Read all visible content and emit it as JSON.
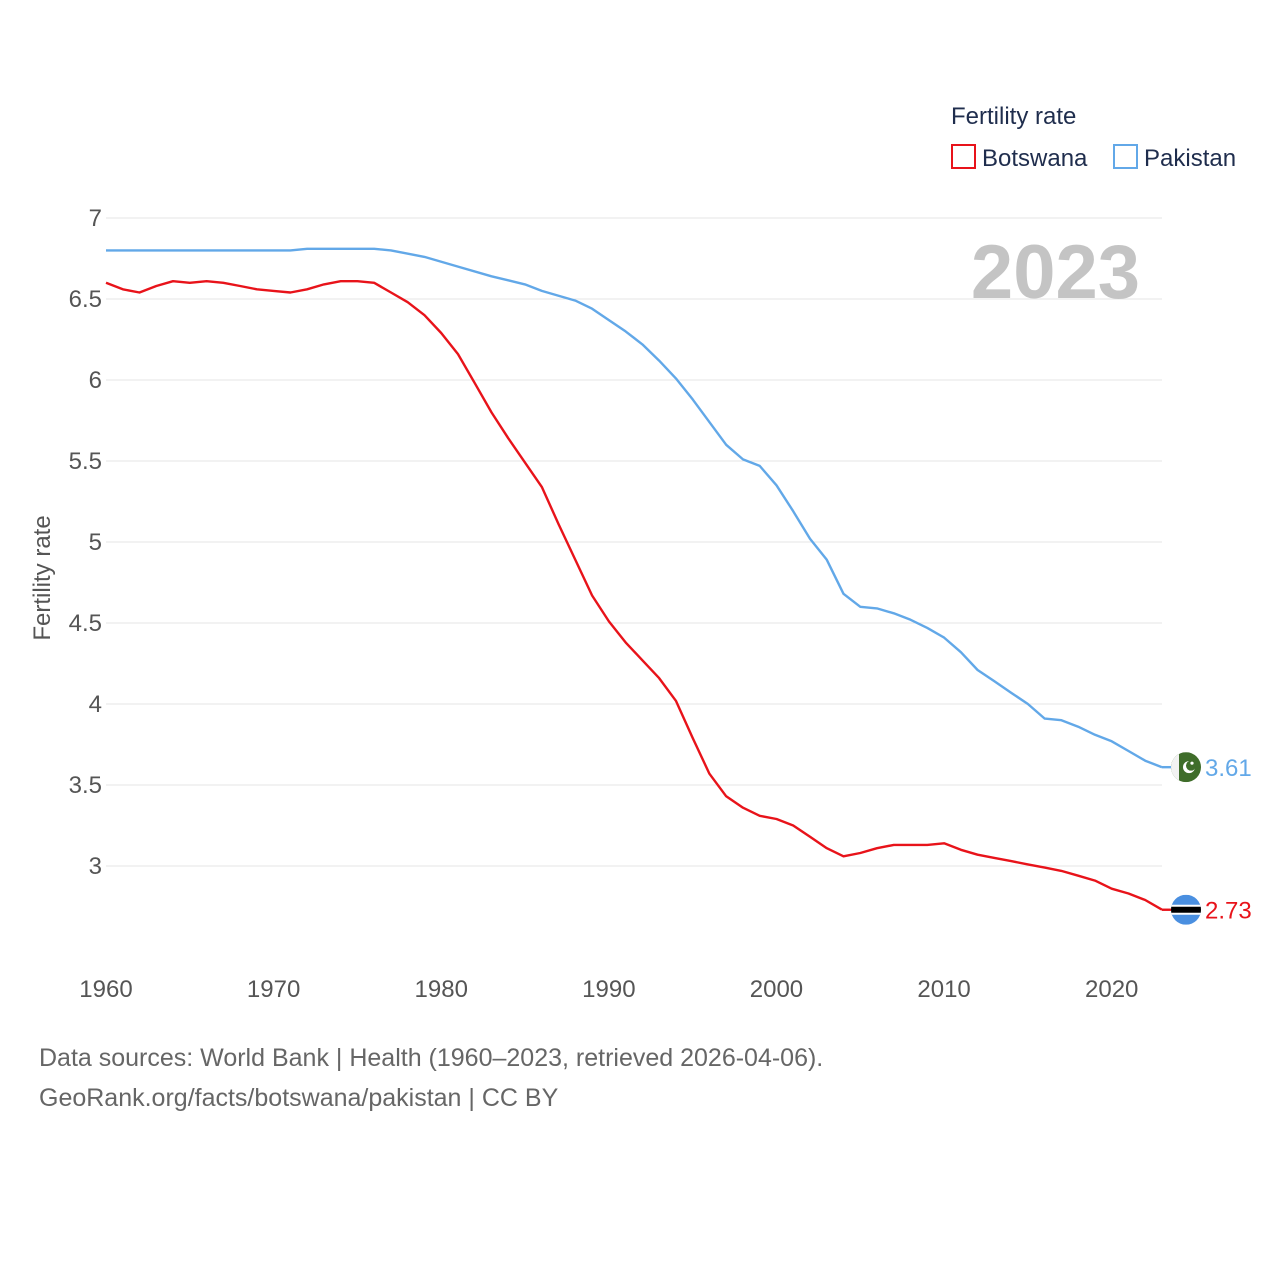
{
  "legend": {
    "title": "Fertility rate",
    "items": [
      {
        "name": "Botswana",
        "color": "#e8131a"
      },
      {
        "name": "Pakistan",
        "color": "#62a8e8"
      }
    ]
  },
  "year_label": "2023",
  "source": {
    "line1": "Data sources: World Bank | Health (1960–2023, retrieved 2026-04-06).",
    "line2": "GeoRank.org/facts/botswana/pakistan | CC BY"
  },
  "chart_data": {
    "type": "line",
    "title": "Fertility rate",
    "xlabel": "",
    "ylabel": "Fertility rate",
    "xlim": [
      1960,
      2023
    ],
    "ylim": [
      2.5,
      7
    ],
    "x_ticks": [
      1960,
      1970,
      1980,
      1990,
      2000,
      2010,
      2020
    ],
    "y_ticks": [
      3,
      3.5,
      4,
      4.5,
      5,
      5.5,
      6,
      6.5,
      7
    ],
    "y_tick_labels": [
      "3",
      "3.5",
      "4",
      "4.5",
      "5",
      "5.5",
      "6",
      "6.5",
      "7"
    ],
    "x_tick_labels": [
      "1960",
      "1970",
      "1980",
      "1990",
      "2000",
      "2010",
      "2020"
    ],
    "grid": true,
    "legend_position": "top-right",
    "series": [
      {
        "name": "Pakistan",
        "color": "#62a8e8",
        "end_label": "3.61",
        "flag": "pakistan",
        "points": [
          [
            1960,
            6.8
          ],
          [
            1965,
            6.8
          ],
          [
            1970,
            6.8
          ],
          [
            1971,
            6.8
          ],
          [
            1972,
            6.81
          ],
          [
            1976,
            6.81
          ],
          [
            1977,
            6.8
          ],
          [
            1979,
            6.76
          ],
          [
            1981,
            6.7
          ],
          [
            1983,
            6.64
          ],
          [
            1985,
            6.59
          ],
          [
            1986,
            6.55
          ],
          [
            1988,
            6.49
          ],
          [
            1989,
            6.44
          ],
          [
            1990,
            6.37
          ],
          [
            1991,
            6.3
          ],
          [
            1992,
            6.22
          ],
          [
            1993,
            6.12
          ],
          [
            1994,
            6.01
          ],
          [
            1995,
            5.88
          ],
          [
            1996,
            5.74
          ],
          [
            1997,
            5.6
          ],
          [
            1998,
            5.51
          ],
          [
            1999,
            5.47
          ],
          [
            2000,
            5.35
          ],
          [
            2001,
            5.19
          ],
          [
            2002,
            5.02
          ],
          [
            2003,
            4.89
          ],
          [
            2004,
            4.68
          ],
          [
            2005,
            4.6
          ],
          [
            2006,
            4.59
          ],
          [
            2007,
            4.56
          ],
          [
            2008,
            4.52
          ],
          [
            2009,
            4.47
          ],
          [
            2010,
            4.41
          ],
          [
            2011,
            4.32
          ],
          [
            2012,
            4.21
          ],
          [
            2013,
            4.14
          ],
          [
            2014,
            4.07
          ],
          [
            2015,
            4.0
          ],
          [
            2016,
            3.91
          ],
          [
            2017,
            3.9
          ],
          [
            2018,
            3.86
          ],
          [
            2019,
            3.81
          ],
          [
            2020,
            3.77
          ],
          [
            2021,
            3.71
          ],
          [
            2022,
            3.65
          ],
          [
            2023,
            3.61
          ]
        ]
      },
      {
        "name": "Botswana",
        "color": "#e8131a",
        "end_label": "2.73",
        "flag": "botswana",
        "points": [
          [
            1960,
            6.6
          ],
          [
            1961,
            6.56
          ],
          [
            1962,
            6.54
          ],
          [
            1963,
            6.58
          ],
          [
            1964,
            6.61
          ],
          [
            1965,
            6.6
          ],
          [
            1966,
            6.61
          ],
          [
            1967,
            6.6
          ],
          [
            1968,
            6.58
          ],
          [
            1969,
            6.56
          ],
          [
            1970,
            6.55
          ],
          [
            1971,
            6.54
          ],
          [
            1972,
            6.56
          ],
          [
            1973,
            6.59
          ],
          [
            1974,
            6.61
          ],
          [
            1975,
            6.61
          ],
          [
            1976,
            6.6
          ],
          [
            1977,
            6.54
          ],
          [
            1978,
            6.48
          ],
          [
            1979,
            6.4
          ],
          [
            1980,
            6.29
          ],
          [
            1981,
            6.16
          ],
          [
            1982,
            5.98
          ],
          [
            1983,
            5.8
          ],
          [
            1984,
            5.64
          ],
          [
            1985,
            5.49
          ],
          [
            1986,
            5.34
          ],
          [
            1987,
            5.11
          ],
          [
            1988,
            4.89
          ],
          [
            1989,
            4.67
          ],
          [
            1990,
            4.51
          ],
          [
            1991,
            4.38
          ],
          [
            1992,
            4.27
          ],
          [
            1993,
            4.16
          ],
          [
            1994,
            4.02
          ],
          [
            1995,
            3.79
          ],
          [
            1996,
            3.57
          ],
          [
            1997,
            3.43
          ],
          [
            1998,
            3.36
          ],
          [
            1999,
            3.31
          ],
          [
            2000,
            3.29
          ],
          [
            2001,
            3.25
          ],
          [
            2002,
            3.18
          ],
          [
            2003,
            3.11
          ],
          [
            2004,
            3.06
          ],
          [
            2005,
            3.08
          ],
          [
            2006,
            3.11
          ],
          [
            2007,
            3.13
          ],
          [
            2008,
            3.13
          ],
          [
            2009,
            3.13
          ],
          [
            2010,
            3.14
          ],
          [
            2011,
            3.1
          ],
          [
            2012,
            3.07
          ],
          [
            2013,
            3.05
          ],
          [
            2014,
            3.03
          ],
          [
            2015,
            3.01
          ],
          [
            2016,
            2.99
          ],
          [
            2017,
            2.97
          ],
          [
            2018,
            2.94
          ],
          [
            2019,
            2.91
          ],
          [
            2020,
            2.86
          ],
          [
            2021,
            2.83
          ],
          [
            2022,
            2.79
          ],
          [
            2023,
            2.73
          ]
        ]
      }
    ]
  }
}
